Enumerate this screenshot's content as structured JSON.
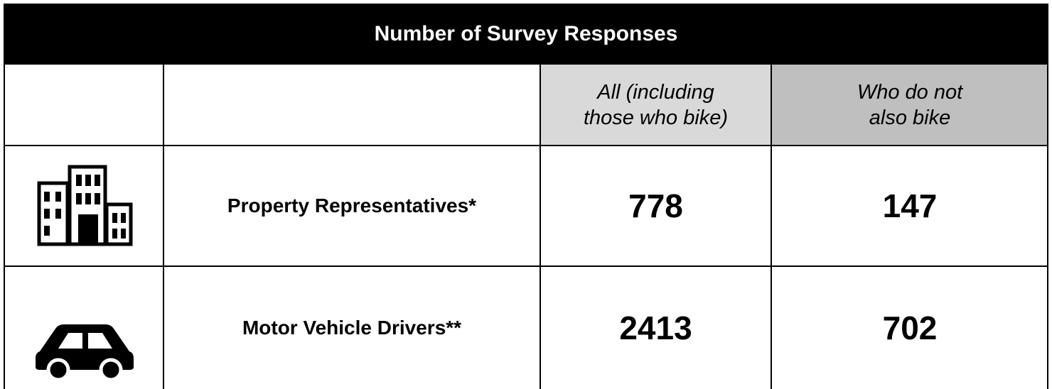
{
  "table": {
    "title": "Number of Survey Responses",
    "columns": [
      [
        "All (including",
        "those who bike)"
      ],
      [
        "Who do not",
        "also bike"
      ]
    ],
    "rows": [
      {
        "label": "Property Representatives*",
        "values": [
          778,
          147
        ]
      },
      {
        "label": "Motor Vehicle Drivers**",
        "values": [
          2413,
          702
        ]
      }
    ]
  }
}
